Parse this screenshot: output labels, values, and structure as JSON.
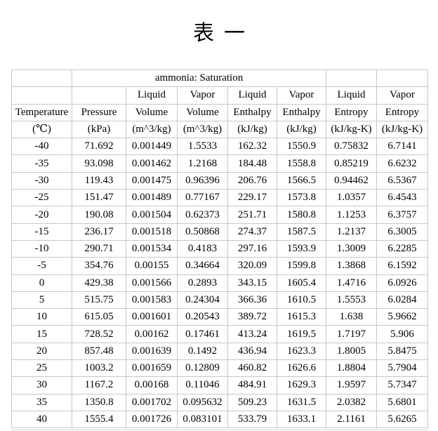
{
  "title": "表一",
  "colors": {
    "grid": "#c8c8c8",
    "text": "#000000",
    "background": "#ffffff"
  },
  "table": {
    "span_header": "ammonia: Saturation",
    "phase_row": [
      "",
      "",
      "Liquid",
      "Vapor",
      "Liquid",
      "Vapor",
      "Liquid",
      "Vapor"
    ],
    "property_row": [
      "Temperature",
      "Pressure",
      "Volume",
      "Volume",
      "Enthalpy",
      "Enthalpy",
      "Entropy",
      "Entropy"
    ],
    "unit_row": [
      "(℃)",
      "(kPa)",
      "(m^3/kg)",
      "(m^3/kg)",
      "(kJ/kg)",
      "(kJ/kg)",
      "(kJ/kg-K)",
      "(kJ/kg-K)"
    ],
    "rows": [
      [
        "-40",
        "71.692",
        "0.001449",
        "1.5533",
        "162.32",
        "1550.9",
        "0.75832",
        "6.7141"
      ],
      [
        "-35",
        "93.098",
        "0.001462",
        "1.2168",
        "184.48",
        "1558.8",
        "0.85219",
        "6.6232"
      ],
      [
        "-30",
        "119.43",
        "0.001475",
        "0.96396",
        "206.76",
        "1566.5",
        "0.94462",
        "6.5367"
      ],
      [
        "-25",
        "151.47",
        "0.001489",
        "0.77167",
        "229.17",
        "1573.8",
        "1.0357",
        "6.4543"
      ],
      [
        "-20",
        "190.08",
        "0.001504",
        "0.62373",
        "251.71",
        "1580.8",
        "1.1253",
        "6.3757"
      ],
      [
        "-15",
        "236.17",
        "0.001518",
        "0.50868",
        "274.37",
        "1587.5",
        "1.2137",
        "6.3005"
      ],
      [
        "-10",
        "290.71",
        "0.001534",
        "0.4183",
        "297.16",
        "1593.9",
        "1.3009",
        "6.2285"
      ],
      [
        "-5",
        "354.76",
        "0.00155",
        "0.34664",
        "320.09",
        "1599.8",
        "1.3868",
        "6.1592"
      ],
      [
        "0",
        "429.38",
        "0.001566",
        "0.2893",
        "343.15",
        "1605.4",
        "1.4716",
        "6.0926"
      ],
      [
        "5",
        "515.75",
        "0.001583",
        "0.24304",
        "366.36",
        "1610.5",
        "1.5553",
        "6.0284"
      ],
      [
        "10",
        "615.05",
        "0.001601",
        "0.20543",
        "389.72",
        "1615.3",
        "1.638",
        "5.9662"
      ],
      [
        "15",
        "728.52",
        "0.00162",
        "0.17461",
        "413.24",
        "1619.5",
        "1.7197",
        "5.906"
      ],
      [
        "20",
        "857.48",
        "0.001639",
        "0.1492",
        "436.94",
        "1623.3",
        "1.8005",
        "5.8475"
      ],
      [
        "25",
        "1003.2",
        "0.001659",
        "0.12809",
        "460.82",
        "1626.6",
        "1.8804",
        "5.7904"
      ],
      [
        "30",
        "1167.2",
        "0.00168",
        "0.11046",
        "484.91",
        "1629.3",
        "1.9597",
        "5.7347"
      ],
      [
        "35",
        "1350.8",
        "0.001702",
        "0.095632",
        "509.23",
        "1631.5",
        "2.0382",
        "5.6801"
      ],
      [
        "40",
        "1555.4",
        "0.001726",
        "0.083101",
        "533.79",
        "1633.1",
        "2.1161",
        "5.6265"
      ]
    ]
  }
}
